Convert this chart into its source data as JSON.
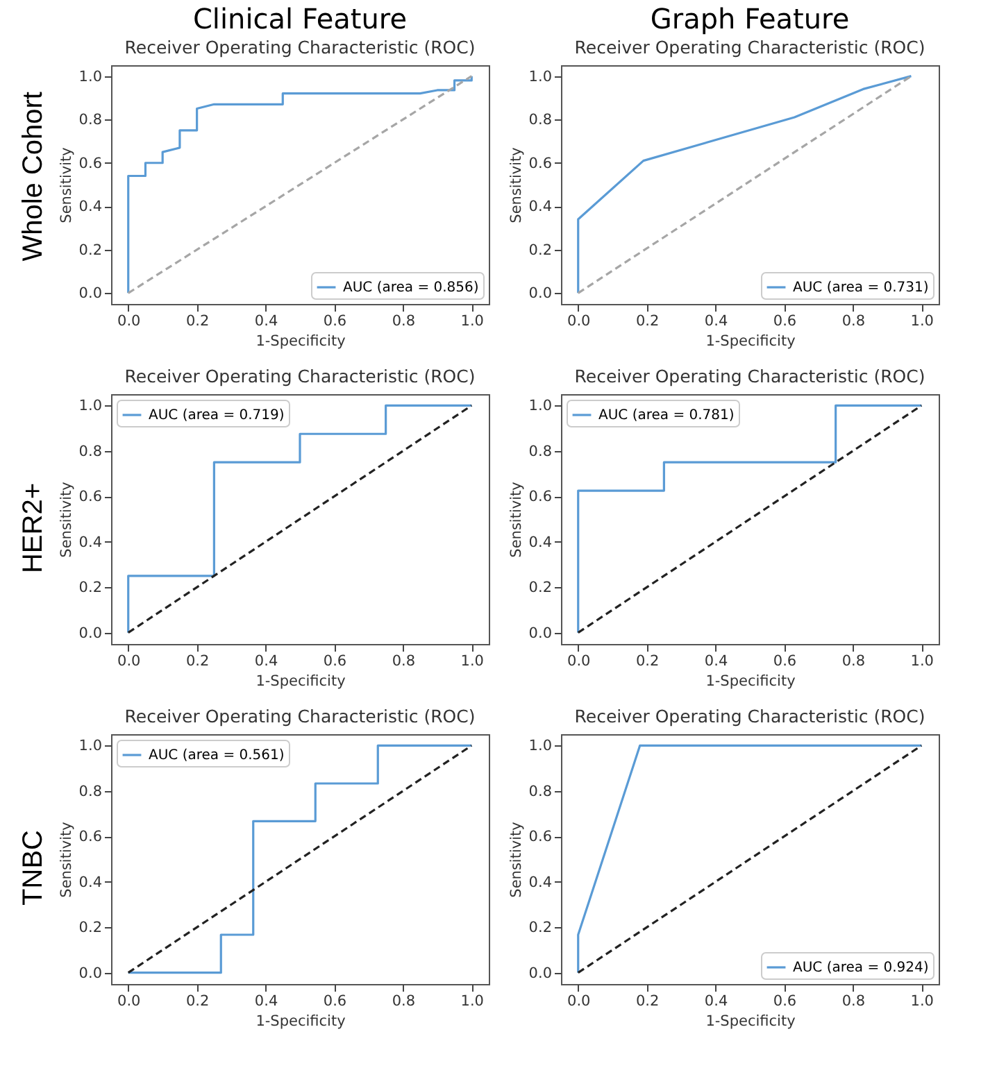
{
  "chart_data": [
    {
      "type": "line",
      "title": "Clinical Feature",
      "subtitle": "Receiver Operating Characteristic (ROC)",
      "xlabel": "1-Specificity",
      "ylabel": "Sensitivity",
      "annotations": [
        "Whole Cohort"
      ],
      "xlim": [
        -0.05,
        1.05
      ],
      "ylim": [
        -0.05,
        1.05
      ],
      "xticks": [
        {
          "value": 0,
          "label": "0.0"
        },
        {
          "value": 0.2,
          "label": "0.2"
        },
        {
          "value": 0.4,
          "label": "0.4"
        },
        {
          "value": 0.6,
          "label": "0.6"
        },
        {
          "value": 0.8,
          "label": "0.8"
        },
        {
          "value": 1,
          "label": "1.0"
        }
      ],
      "yticks": [
        {
          "value": 0,
          "label": "0.0"
        },
        {
          "value": 0.2,
          "label": "0.2"
        },
        {
          "value": 0.4,
          "label": "0.4"
        },
        {
          "value": 0.6,
          "label": "0.6"
        },
        {
          "value": 0.8,
          "label": "0.8"
        },
        {
          "value": 1,
          "label": "1.0"
        }
      ],
      "legend": "bottom right",
      "series": [
        {
          "name": "AUC (area = 0.856)",
          "color": "#5a9bd5",
          "line_style": "solid",
          "x": [
            0,
            0,
            0.05,
            0.05,
            0.1,
            0.1,
            0.15,
            0.15,
            0.2,
            0.2,
            0.25,
            0.45,
            0.45,
            0.85,
            0.9,
            0.95,
            0.95,
            1,
            1
          ],
          "values": [
            0,
            0.54,
            0.54,
            0.6,
            0.6,
            0.65,
            0.67,
            0.75,
            0.75,
            0.85,
            0.87,
            0.87,
            0.92,
            0.92,
            0.935,
            0.935,
            0.98,
            0.98,
            1
          ]
        },
        {
          "color": "#a6a6a6",
          "line_style": "dashed",
          "x": [
            0,
            1
          ],
          "values": [
            0,
            1
          ]
        }
      ]
    },
    {
      "type": "line",
      "title": "Graph Feature",
      "subtitle": "Receiver Operating Characteristic (ROC)",
      "xlabel": "1-Specificity",
      "ylabel": "Sensitivity",
      "xlim": [
        -0.05,
        1.05
      ],
      "ylim": [
        -0.05,
        1.05
      ],
      "xticks": [
        {
          "value": 0,
          "label": "0.0"
        },
        {
          "value": 0.2,
          "label": "0.2"
        },
        {
          "value": 0.4,
          "label": "0.4"
        },
        {
          "value": 0.6,
          "label": "0.6"
        },
        {
          "value": 0.8,
          "label": "0.8"
        },
        {
          "value": 1,
          "label": "1.0"
        }
      ],
      "yticks": [
        {
          "value": 0,
          "label": "0.0"
        },
        {
          "value": 0.2,
          "label": "0.2"
        },
        {
          "value": 0.4,
          "label": "0.4"
        },
        {
          "value": 0.6,
          "label": "0.6"
        },
        {
          "value": 0.8,
          "label": "0.8"
        },
        {
          "value": 1,
          "label": "1.0"
        }
      ],
      "legend": "bottom right",
      "series": [
        {
          "name": "AUC (area = 0.731)",
          "color": "#5a9bd5",
          "line_style": "solid",
          "x": [
            0,
            0,
            0.19,
            0.63,
            0.83,
            0.97
          ],
          "values": [
            0,
            0.34,
            0.61,
            0.81,
            0.94,
            1
          ]
        },
        {
          "color": "#a6a6a6",
          "line_style": "dashed",
          "x": [
            0,
            0.97
          ],
          "values": [
            0,
            1
          ]
        }
      ]
    },
    {
      "type": "line",
      "title": "Receiver Operating Characteristic (ROC)",
      "xlabel": "1-Specificity",
      "ylabel": "Sensitivity",
      "annotations": [
        "HER2+"
      ],
      "xlim": [
        -0.05,
        1.05
      ],
      "ylim": [
        -0.05,
        1.05
      ],
      "xticks": [
        {
          "value": 0,
          "label": "0.0"
        },
        {
          "value": 0.2,
          "label": "0.2"
        },
        {
          "value": 0.4,
          "label": "0.4"
        },
        {
          "value": 0.6,
          "label": "0.6"
        },
        {
          "value": 0.8,
          "label": "0.8"
        },
        {
          "value": 1,
          "label": "1.0"
        }
      ],
      "yticks": [
        {
          "value": 0,
          "label": "0.0"
        },
        {
          "value": 0.2,
          "label": "0.2"
        },
        {
          "value": 0.4,
          "label": "0.4"
        },
        {
          "value": 0.6,
          "label": "0.6"
        },
        {
          "value": 0.8,
          "label": "0.8"
        },
        {
          "value": 1,
          "label": "1.0"
        }
      ],
      "legend": "top left",
      "series": [
        {
          "name": "AUC (area = 0.719)",
          "color": "#5a9bd5",
          "line_style": "solid",
          "x": [
            0,
            0,
            0.25,
            0.25,
            0.5,
            0.5,
            0.75,
            0.75,
            1
          ],
          "values": [
            0,
            0.25,
            0.25,
            0.75,
            0.75,
            0.875,
            0.875,
            1,
            1
          ]
        },
        {
          "color": "#222222",
          "line_style": "dashed",
          "x": [
            0,
            1
          ],
          "values": [
            0,
            1
          ]
        }
      ]
    },
    {
      "type": "line",
      "title": "Receiver Operating Characteristic (ROC)",
      "xlabel": "1-Specificity",
      "ylabel": "Sensitivity",
      "xlim": [
        -0.05,
        1.05
      ],
      "ylim": [
        -0.05,
        1.05
      ],
      "xticks": [
        {
          "value": 0,
          "label": "0.0"
        },
        {
          "value": 0.2,
          "label": "0.2"
        },
        {
          "value": 0.4,
          "label": "0.4"
        },
        {
          "value": 0.6,
          "label": "0.6"
        },
        {
          "value": 0.8,
          "label": "0.8"
        },
        {
          "value": 1,
          "label": "1.0"
        }
      ],
      "yticks": [
        {
          "value": 0,
          "label": "0.0"
        },
        {
          "value": 0.2,
          "label": "0.2"
        },
        {
          "value": 0.4,
          "label": "0.4"
        },
        {
          "value": 0.6,
          "label": "0.6"
        },
        {
          "value": 0.8,
          "label": "0.8"
        },
        {
          "value": 1,
          "label": "1.0"
        }
      ],
      "legend": "top left",
      "series": [
        {
          "name": "AUC (area = 0.781)",
          "color": "#5a9bd5",
          "line_style": "solid",
          "x": [
            0,
            0,
            0.25,
            0.25,
            0.75,
            0.75,
            1
          ],
          "values": [
            0,
            0.625,
            0.625,
            0.75,
            0.75,
            1,
            1
          ]
        },
        {
          "color": "#222222",
          "line_style": "dashed",
          "x": [
            0,
            1
          ],
          "values": [
            0,
            1
          ]
        }
      ]
    },
    {
      "type": "line",
      "title": "Receiver Operating Characteristic (ROC)",
      "xlabel": "1-Specificity",
      "ylabel": "Sensitivity",
      "annotations": [
        "TNBC"
      ],
      "xlim": [
        -0.05,
        1.05
      ],
      "ylim": [
        -0.05,
        1.05
      ],
      "xticks": [
        {
          "value": 0,
          "label": "0.0"
        },
        {
          "value": 0.2,
          "label": "0.2"
        },
        {
          "value": 0.4,
          "label": "0.4"
        },
        {
          "value": 0.6,
          "label": "0.6"
        },
        {
          "value": 0.8,
          "label": "0.8"
        },
        {
          "value": 1,
          "label": "1.0"
        }
      ],
      "yticks": [
        {
          "value": 0,
          "label": "0.0"
        },
        {
          "value": 0.2,
          "label": "0.2"
        },
        {
          "value": 0.4,
          "label": "0.4"
        },
        {
          "value": 0.6,
          "label": "0.6"
        },
        {
          "value": 0.8,
          "label": "0.8"
        },
        {
          "value": 1,
          "label": "1.0"
        }
      ],
      "legend": "top left",
      "series": [
        {
          "name": "AUC (area = 0.561)",
          "color": "#5a9bd5",
          "line_style": "solid",
          "x": [
            0,
            0.27,
            0.27,
            0.364,
            0.364,
            0.545,
            0.545,
            0.727,
            0.727,
            1
          ],
          "values": [
            0,
            0,
            0.167,
            0.167,
            0.667,
            0.667,
            0.833,
            0.833,
            1,
            1
          ]
        },
        {
          "color": "#222222",
          "line_style": "dashed",
          "x": [
            0,
            1
          ],
          "values": [
            0,
            1
          ]
        }
      ]
    },
    {
      "type": "line",
      "title": "Receiver Operating Characteristic (ROC)",
      "xlabel": "1-Specificity",
      "ylabel": "Sensitivity",
      "xlim": [
        -0.05,
        1.05
      ],
      "ylim": [
        -0.05,
        1.05
      ],
      "xticks": [
        {
          "value": 0,
          "label": "0.0"
        },
        {
          "value": 0.2,
          "label": "0.2"
        },
        {
          "value": 0.4,
          "label": "0.4"
        },
        {
          "value": 0.6,
          "label": "0.6"
        },
        {
          "value": 0.8,
          "label": "0.8"
        },
        {
          "value": 1,
          "label": "1.0"
        }
      ],
      "yticks": [
        {
          "value": 0,
          "label": "0.0"
        },
        {
          "value": 0.2,
          "label": "0.2"
        },
        {
          "value": 0.4,
          "label": "0.4"
        },
        {
          "value": 0.6,
          "label": "0.6"
        },
        {
          "value": 0.8,
          "label": "0.8"
        },
        {
          "value": 1,
          "label": "1.0"
        }
      ],
      "legend": "bottom right",
      "series": [
        {
          "name": "AUC (area = 0.924)",
          "color": "#5a9bd5",
          "line_style": "solid",
          "x": [
            0,
            0,
            0.18,
            1
          ],
          "values": [
            0,
            0.167,
            1,
            1
          ]
        },
        {
          "color": "#222222",
          "line_style": "dashed",
          "x": [
            0,
            1
          ],
          "values": [
            0,
            1
          ]
        }
      ]
    }
  ]
}
